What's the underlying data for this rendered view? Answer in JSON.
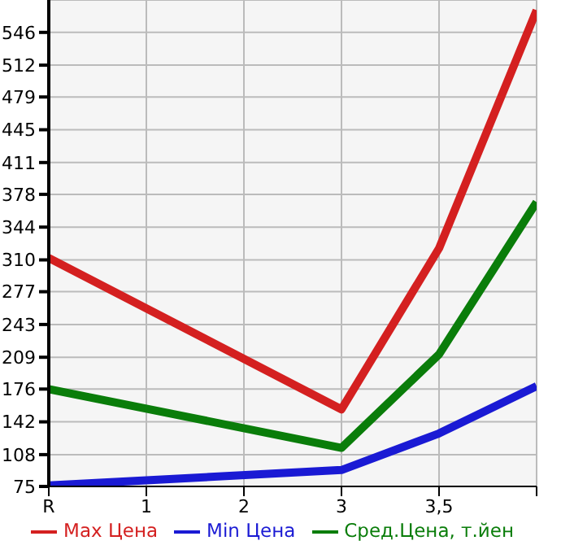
{
  "chart_data": {
    "type": "line",
    "categories": [
      "R",
      "1",
      "2",
      "3",
      "3,5",
      null
    ],
    "series": [
      {
        "name": "Max Цена",
        "color": "#d42020",
        "values": [
          312,
          null,
          null,
          155,
          322,
          569
        ]
      },
      {
        "name": "Min Цена",
        "color": "#1a1ad4",
        "values": [
          76,
          null,
          null,
          92,
          130,
          179
        ]
      },
      {
        "name": "Сред.Цена, т.йен",
        "color": "#0a7d0a",
        "values": [
          176,
          null,
          null,
          115,
          212,
          370
        ]
      }
    ],
    "ylim": [
      75,
      579.6
    ],
    "yticks": [
      75,
      108,
      142,
      176,
      209,
      243,
      277,
      310,
      344,
      378,
      411,
      445,
      479,
      512,
      546
    ],
    "grid": true,
    "legend": "bottom",
    "marker": "none",
    "line_style": "solid"
  }
}
